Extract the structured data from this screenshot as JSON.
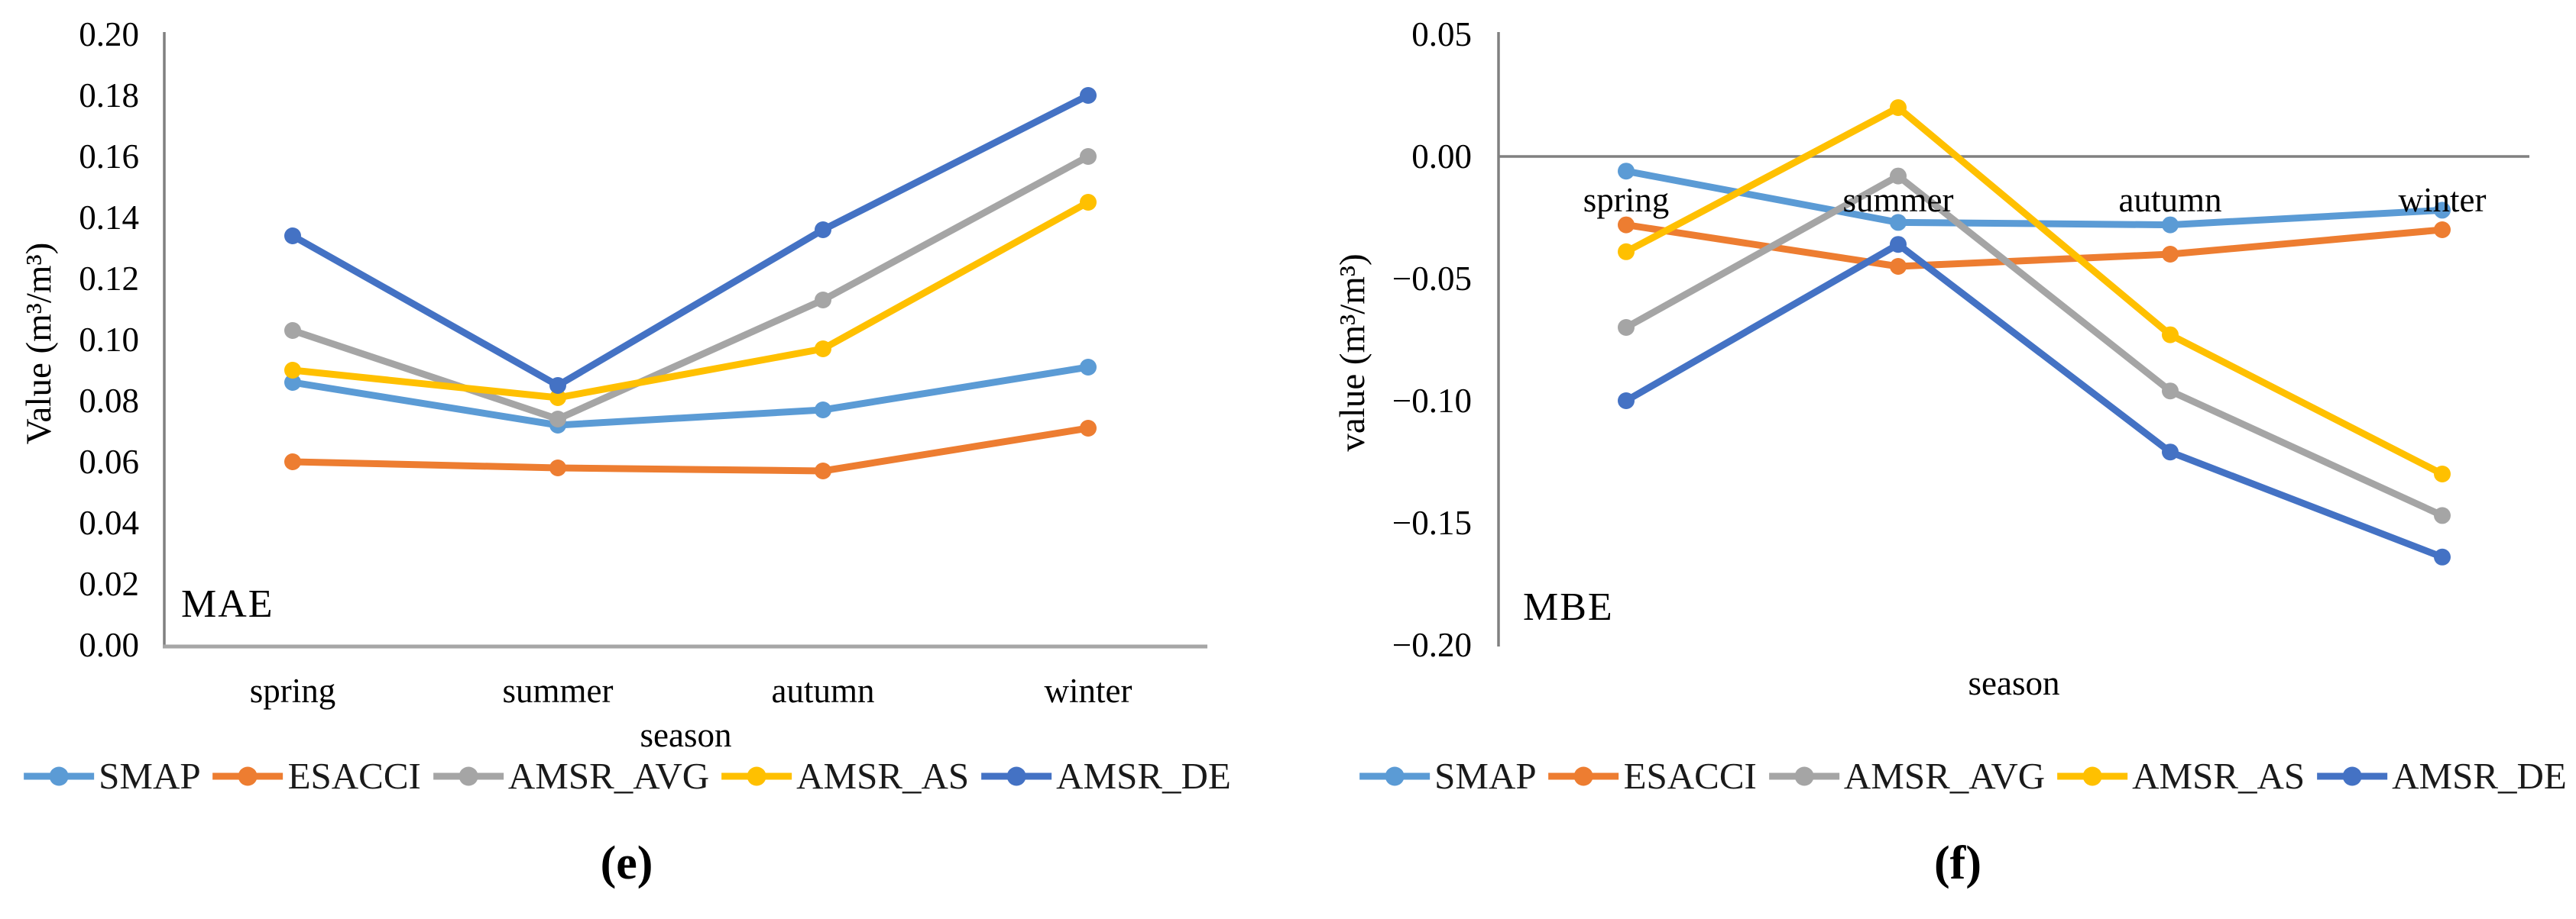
{
  "figure": {
    "background": "#ffffff",
    "axis_line_color": "#808080",
    "baseline_color": "#a6a6a6",
    "text_color": "#000000"
  },
  "chart_data": [
    {
      "type": "line",
      "panel_id": "e",
      "caption": "(e)",
      "stat_label": "MAE",
      "xlabel": "season",
      "ylabel": "Value (m³/m³)",
      "categories": [
        "spring",
        "summer",
        "autumn",
        "winter"
      ],
      "ylim": [
        0.0,
        0.2
      ],
      "grid": false,
      "legend_position": "bottom",
      "x_labels_placement": "below-axis",
      "yticks": [
        {
          "label": "0.20",
          "value": 0.2
        },
        {
          "label": "0.18",
          "value": 0.18
        },
        {
          "label": "0.16",
          "value": 0.16
        },
        {
          "label": "0.14",
          "value": 0.14
        },
        {
          "label": "0.12",
          "value": 0.12
        },
        {
          "label": "0.10",
          "value": 0.1
        },
        {
          "label": "0.08",
          "value": 0.08
        },
        {
          "label": "0.06",
          "value": 0.06
        },
        {
          "label": "0.04",
          "value": 0.04
        },
        {
          "label": "0.02",
          "value": 0.02
        },
        {
          "label": "0.00",
          "value": 0.0
        }
      ],
      "series": [
        {
          "name": "SMAP",
          "color": "#5B9BD5",
          "values": [
            0.086,
            0.072,
            0.077,
            0.091
          ]
        },
        {
          "name": "ESACCI",
          "color": "#ED7D31",
          "values": [
            0.06,
            0.058,
            0.057,
            0.071
          ]
        },
        {
          "name": "AMSR_AVG",
          "color": "#A5A5A5",
          "values": [
            0.103,
            0.074,
            0.113,
            0.16
          ]
        },
        {
          "name": "AMSR_AS",
          "color": "#FFC000",
          "values": [
            0.09,
            0.081,
            0.097,
            0.145
          ]
        },
        {
          "name": "AMSR_DE",
          "color": "#4472C4",
          "values": [
            0.134,
            0.085,
            0.136,
            0.18
          ]
        }
      ]
    },
    {
      "type": "line",
      "panel_id": "f",
      "caption": "(f)",
      "stat_label": "MBE",
      "xlabel": "season",
      "ylabel": "value (m³/m³)",
      "categories": [
        "spring",
        "summer",
        "autumn",
        "winter"
      ],
      "ylim": [
        -0.2,
        0.05
      ],
      "grid": false,
      "legend_position": "bottom",
      "x_labels_placement": "inside-below-zero-line",
      "yticks": [
        {
          "label": "0.05",
          "value": 0.05
        },
        {
          "label": "0.00",
          "value": 0.0
        },
        {
          "label": "−0.05",
          "value": -0.05
        },
        {
          "label": "−0.10",
          "value": -0.1
        },
        {
          "label": "−0.15",
          "value": -0.15
        },
        {
          "label": "−0.20",
          "value": -0.2
        }
      ],
      "series": [
        {
          "name": "SMAP",
          "color": "#5B9BD5",
          "values": [
            -0.006,
            -0.027,
            -0.028,
            -0.022
          ]
        },
        {
          "name": "ESACCI",
          "color": "#ED7D31",
          "values": [
            -0.028,
            -0.045,
            -0.04,
            -0.03
          ]
        },
        {
          "name": "AMSR_AVG",
          "color": "#A5A5A5",
          "values": [
            -0.07,
            -0.008,
            -0.096,
            -0.147
          ]
        },
        {
          "name": "AMSR_AS",
          "color": "#FFC000",
          "values": [
            -0.039,
            0.02,
            -0.073,
            -0.13
          ]
        },
        {
          "name": "AMSR_DE",
          "color": "#4472C4",
          "values": [
            -0.1,
            -0.036,
            -0.121,
            -0.164
          ]
        }
      ]
    }
  ]
}
